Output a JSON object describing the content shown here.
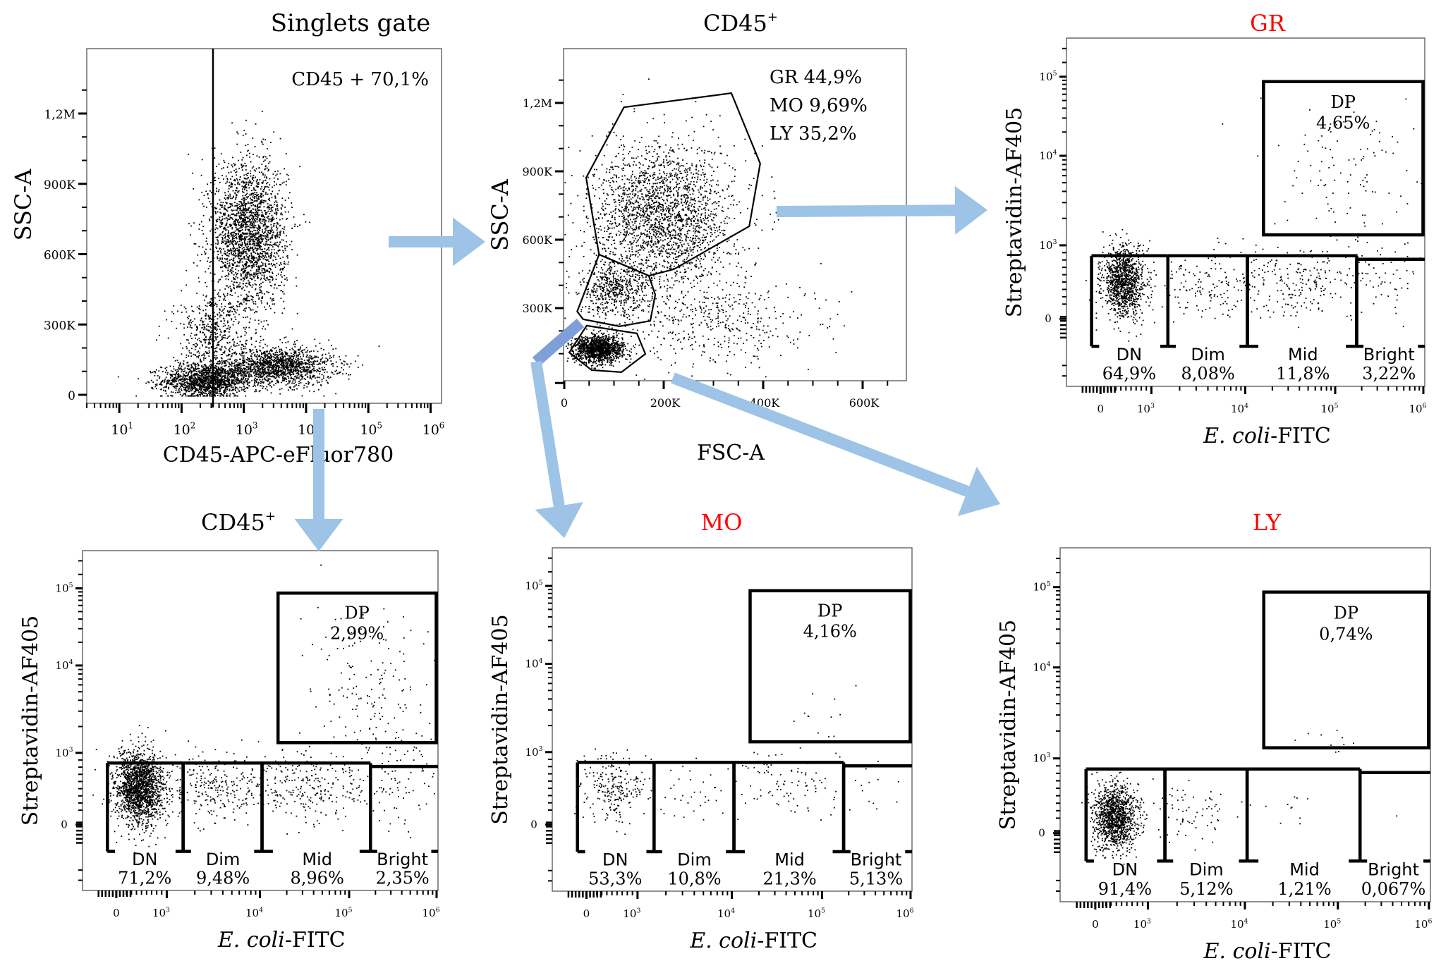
{
  "figure": {
    "arrow_color": "#9dc3e6",
    "arrow_color_dark": "#7f9fd9",
    "red_title_color": "#ff0000"
  },
  "chart_data": [
    {
      "id": "singlets",
      "type": "scatter",
      "title": "Singlets gate",
      "title_color": "#000000",
      "xlabel": "CD45-APC-eFluor780",
      "ylabel": "SSC-A",
      "x_scale": "log",
      "xlim": [
        3,
        1500000
      ],
      "ylim": [
        0,
        1400000
      ],
      "x_ticks": [
        {
          "v": 10,
          "label": "10",
          "sup": "1"
        },
        {
          "v": 100,
          "label": "10",
          "sup": "2"
        },
        {
          "v": 1000,
          "label": "10",
          "sup": "3"
        },
        {
          "v": 10000,
          "label": "10",
          "sup": "4"
        },
        {
          "v": 100000,
          "label": "10",
          "sup": "5"
        },
        {
          "v": 1000000,
          "label": "10",
          "sup": "6"
        }
      ],
      "y_ticks": [
        {
          "v": 0,
          "label": "0"
        },
        {
          "v": 300000,
          "label": "300K"
        },
        {
          "v": 600000,
          "label": "600K"
        },
        {
          "v": 900000,
          "label": "900K"
        },
        {
          "v": 1200000,
          "label": "1,2M"
        }
      ],
      "gate_line_x": 320,
      "annotations": [
        {
          "text": "CD45 + 70,1%",
          "gate": "CD45+",
          "percent": 70.1
        }
      ],
      "populations": [
        {
          "name": "CD45- low",
          "cx": 250,
          "cy": 60000,
          "sx_log": 0.35,
          "sy": 35000,
          "n": 1400
        },
        {
          "name": "CD45+ low SSC",
          "cx": 3500,
          "cy": 120000,
          "sx_log": 0.45,
          "sy": 40000,
          "n": 1500
        },
        {
          "name": "CD45+ high SSC",
          "cx": 1200,
          "cy": 680000,
          "sx_log": 0.3,
          "sy": 160000,
          "n": 2300
        },
        {
          "name": "diagonal",
          "cx": 300,
          "cy": 250000,
          "sx_log": 0.3,
          "sy": 90000,
          "n": 500
        }
      ]
    },
    {
      "id": "cd45_fsc_ssc",
      "type": "scatter",
      "title": "CD45",
      "title_sup": "+",
      "title_color": "#000000",
      "xlabel": "FSC-A",
      "ylabel": "SSC-A",
      "x_scale": "linear",
      "xlim": [
        -5000,
        690000
      ],
      "ylim": [
        -20000,
        1400000
      ],
      "x_ticks": [
        {
          "v": 0,
          "label": "0"
        },
        {
          "v": 200000,
          "label": "200K"
        },
        {
          "v": 400000,
          "label": "400K"
        },
        {
          "v": 600000,
          "label": "600K"
        }
      ],
      "y_ticks": [
        {
          "v": 300000,
          "label": "300K"
        },
        {
          "v": 600000,
          "label": "600K"
        },
        {
          "v": 900000,
          "label": "900K"
        },
        {
          "v": 1200000,
          "label": "1,2M"
        }
      ],
      "annotations": [
        {
          "text": "GR 44,9%",
          "gate": "GR",
          "percent": 44.9
        },
        {
          "text": "MO 9,69%",
          "gate": "MO",
          "percent": 9.69
        },
        {
          "text": "LY 35,2%",
          "gate": "LY",
          "percent": 35.2
        }
      ],
      "gates": [
        {
          "name": "GR",
          "points": [
            [
              120000,
              1181000
            ],
            [
              336000,
              1243000
            ],
            [
              394000,
              934000
            ],
            [
              372000,
              659000
            ],
            [
              220000,
              470000
            ],
            [
              170000,
              442000
            ],
            [
              70000,
              535000
            ],
            [
              44000,
              872000
            ]
          ]
        },
        {
          "name": "MO",
          "points": [
            [
              70000,
              535000
            ],
            [
              170000,
              442000
            ],
            [
              183000,
              359000
            ],
            [
              173000,
              244000
            ],
            [
              111000,
              220000
            ],
            [
              38000,
              251000
            ],
            [
              26000,
              285000
            ]
          ]
        },
        {
          "name": "LY",
          "points": [
            [
              45000,
              223000
            ],
            [
              146000,
              189000
            ],
            [
              163000,
              99000
            ],
            [
              115000,
              19000
            ],
            [
              55000,
              28000
            ],
            [
              10000,
              105000
            ]
          ]
        }
      ],
      "populations": [
        {
          "name": "GR",
          "cx": 200000,
          "cy": 700000,
          "sx": 70000,
          "sy": 160000,
          "n": 2200
        },
        {
          "name": "MO",
          "cx": 100000,
          "cy": 380000,
          "sx": 35000,
          "sy": 60000,
          "n": 500
        },
        {
          "name": "LY",
          "cx": 70000,
          "cy": 120000,
          "sx": 25000,
          "sy": 30000,
          "n": 1300
        },
        {
          "name": "debris",
          "cx": 300000,
          "cy": 250000,
          "sx": 100000,
          "sy": 110000,
          "n": 450
        }
      ]
    },
    {
      "id": "gr_ecoli",
      "type": "scatter",
      "title": "GR",
      "title_color": "#ff0000",
      "xlabel_italic": "E. coli",
      "xlabel_rest": "-FITC",
      "ylabel": "Streptavidin-AF405",
      "x_ticks": [
        {
          "v": 0,
          "label": "0"
        },
        {
          "v": 1000,
          "label": "10",
          "sup": "3"
        },
        {
          "v": 10000,
          "label": "10",
          "sup": "4"
        },
        {
          "v": 100000,
          "label": "10",
          "sup": "5"
        },
        {
          "v": 1000000,
          "label": "10",
          "sup": "6"
        }
      ],
      "y_ticks": [
        {
          "v": 0,
          "label": "0"
        },
        {
          "v": 1000,
          "label": "10",
          "sup": "3"
        },
        {
          "v": 10000,
          "label": "10",
          "sup": "4"
        },
        {
          "v": 100000,
          "label": "10",
          "sup": "5"
        }
      ],
      "gates": [
        {
          "name": "DP",
          "label": "DP",
          "percent": "4,65%"
        },
        {
          "name": "DN",
          "label": "DN",
          "percent": "64,9%"
        },
        {
          "name": "Dim",
          "label": "Dim",
          "percent": "8,08%"
        },
        {
          "name": "Mid",
          "label": "Mid",
          "percent": "11,8%"
        },
        {
          "name": "Bright",
          "label": "Bright",
          "percent": "3,22%"
        }
      ],
      "populations": [
        {
          "name": "DN",
          "fx": 0.16,
          "fy": 0.3,
          "sx": 0.03,
          "sy": 0.05,
          "n": 1100
        },
        {
          "name": "Dim",
          "fx": 0.38,
          "fy": 0.29,
          "sx": 0.07,
          "sy": 0.05,
          "n": 130
        },
        {
          "name": "Mid",
          "fx": 0.64,
          "fy": 0.3,
          "sx": 0.09,
          "sy": 0.05,
          "n": 220
        },
        {
          "name": "Bright",
          "fx": 0.88,
          "fy": 0.32,
          "sx": 0.06,
          "sy": 0.06,
          "n": 60
        },
        {
          "name": "DP",
          "fx": 0.8,
          "fy": 0.6,
          "sx": 0.1,
          "sy": 0.11,
          "n": 110
        }
      ]
    },
    {
      "id": "cd45_ecoli",
      "type": "scatter",
      "title": "CD45",
      "title_sup": "+",
      "title_color": "#000000",
      "xlabel_italic": "E. coli",
      "xlabel_rest": "-FITC",
      "ylabel": "Streptavidin-AF405",
      "x_ticks": [
        {
          "v": 0,
          "label": "0"
        },
        {
          "v": 1000,
          "label": "10",
          "sup": "3"
        },
        {
          "v": 10000,
          "label": "10",
          "sup": "4"
        },
        {
          "v": 100000,
          "label": "10",
          "sup": "5"
        },
        {
          "v": 1000000,
          "label": "10",
          "sup": "6"
        }
      ],
      "y_ticks": [
        {
          "v": 0,
          "label": "0"
        },
        {
          "v": 1000,
          "label": "10",
          "sup": "3"
        },
        {
          "v": 10000,
          "label": "10",
          "sup": "4"
        },
        {
          "v": 100000,
          "label": "10",
          "sup": "5"
        }
      ],
      "gates": [
        {
          "name": "DP",
          "label": "DP",
          "percent": "2,99%"
        },
        {
          "name": "DN",
          "label": "DN",
          "percent": "71,2%"
        },
        {
          "name": "Dim",
          "label": "Dim",
          "percent": "9,48%"
        },
        {
          "name": "Mid",
          "label": "Mid",
          "percent": "8,96%"
        },
        {
          "name": "Bright",
          "label": "Bright",
          "percent": "2,35%"
        }
      ],
      "populations": [
        {
          "name": "DN",
          "fx": 0.16,
          "fy": 0.3,
          "sx": 0.035,
          "sy": 0.055,
          "n": 1700
        },
        {
          "name": "Dim",
          "fx": 0.38,
          "fy": 0.3,
          "sx": 0.07,
          "sy": 0.05,
          "n": 250
        },
        {
          "name": "Mid",
          "fx": 0.64,
          "fy": 0.31,
          "sx": 0.09,
          "sy": 0.05,
          "n": 260
        },
        {
          "name": "Bright",
          "fx": 0.88,
          "fy": 0.33,
          "sx": 0.06,
          "sy": 0.06,
          "n": 90
        },
        {
          "name": "DP",
          "fx": 0.8,
          "fy": 0.6,
          "sx": 0.1,
          "sy": 0.11,
          "n": 150
        }
      ]
    },
    {
      "id": "mo_ecoli",
      "type": "scatter",
      "title": "MO",
      "title_color": "#ff0000",
      "xlabel_italic": "E. coli",
      "xlabel_rest": "-FITC",
      "ylabel": "Streptavidin-AF405",
      "x_ticks": [
        {
          "v": 0,
          "label": "0"
        },
        {
          "v": 1000,
          "label": "10",
          "sup": "3"
        },
        {
          "v": 10000,
          "label": "10",
          "sup": "4"
        },
        {
          "v": 100000,
          "label": "10",
          "sup": "5"
        },
        {
          "v": 1000000,
          "label": "10",
          "sup": "6"
        }
      ],
      "y_ticks": [
        {
          "v": 0,
          "label": "0"
        },
        {
          "v": 1000,
          "label": "10",
          "sup": "3"
        },
        {
          "v": 10000,
          "label": "10",
          "sup": "4"
        },
        {
          "v": 100000,
          "label": "10",
          "sup": "5"
        }
      ],
      "gates": [
        {
          "name": "DP",
          "label": "DP",
          "percent": "4,16%"
        },
        {
          "name": "DN",
          "label": "DN",
          "percent": "53,3%"
        },
        {
          "name": "Dim",
          "label": "Dim",
          "percent": "10,8%"
        },
        {
          "name": "Mid",
          "label": "Mid",
          "percent": "21,3%"
        },
        {
          "name": "Bright",
          "label": "Bright",
          "percent": "5,13%"
        }
      ],
      "populations": [
        {
          "name": "DN",
          "fx": 0.17,
          "fy": 0.3,
          "sx": 0.04,
          "sy": 0.05,
          "n": 230
        },
        {
          "name": "Dim",
          "fx": 0.38,
          "fy": 0.29,
          "sx": 0.06,
          "sy": 0.05,
          "n": 35
        },
        {
          "name": "Mid",
          "fx": 0.64,
          "fy": 0.31,
          "sx": 0.08,
          "sy": 0.05,
          "n": 90
        },
        {
          "name": "Bright",
          "fx": 0.88,
          "fy": 0.3,
          "sx": 0.06,
          "sy": 0.06,
          "n": 18
        },
        {
          "name": "DP",
          "fx": 0.75,
          "fy": 0.5,
          "sx": 0.05,
          "sy": 0.04,
          "n": 14
        }
      ]
    },
    {
      "id": "ly_ecoli",
      "type": "scatter",
      "title": "LY",
      "title_color": "#ff0000",
      "xlabel_italic": "E. coli",
      "xlabel_rest": "-FITC",
      "ylabel": "Streptavidin-AF405",
      "x_ticks": [
        {
          "v": 0,
          "label": "0"
        },
        {
          "v": 1000,
          "label": "10",
          "sup": "3"
        },
        {
          "v": 10000,
          "label": "10",
          "sup": "4"
        },
        {
          "v": 100000,
          "label": "10",
          "sup": "5"
        },
        {
          "v": 1000000,
          "label": "10",
          "sup": "6"
        }
      ],
      "y_ticks": [
        {
          "v": 0,
          "label": "0"
        },
        {
          "v": 1000,
          "label": "10",
          "sup": "3"
        },
        {
          "v": 10000,
          "label": "10",
          "sup": "4"
        },
        {
          "v": 100000,
          "label": "10",
          "sup": "5"
        }
      ],
      "gates": [
        {
          "name": "DP",
          "label": "DP",
          "percent": "0,74%"
        },
        {
          "name": "DN",
          "label": "DN",
          "percent": "91,4%"
        },
        {
          "name": "Dim",
          "label": "Dim",
          "percent": "5,12%"
        },
        {
          "name": "Mid",
          "label": "Mid",
          "percent": "1,21%"
        },
        {
          "name": "Bright",
          "label": "Bright",
          "percent": "0,067%"
        }
      ],
      "populations": [
        {
          "name": "DN",
          "fx": 0.15,
          "fy": 0.24,
          "sx": 0.03,
          "sy": 0.045,
          "n": 1200
        },
        {
          "name": "Dim",
          "fx": 0.35,
          "fy": 0.25,
          "sx": 0.05,
          "sy": 0.04,
          "n": 70
        },
        {
          "name": "Mid",
          "fx": 0.6,
          "fy": 0.25,
          "sx": 0.06,
          "sy": 0.04,
          "n": 12
        },
        {
          "name": "Bright",
          "fx": 0.9,
          "fy": 0.25,
          "sx": 0.01,
          "sy": 0.01,
          "n": 1
        },
        {
          "name": "DP",
          "fx": 0.73,
          "fy": 0.45,
          "sx": 0.04,
          "sy": 0.03,
          "n": 10
        }
      ]
    }
  ]
}
